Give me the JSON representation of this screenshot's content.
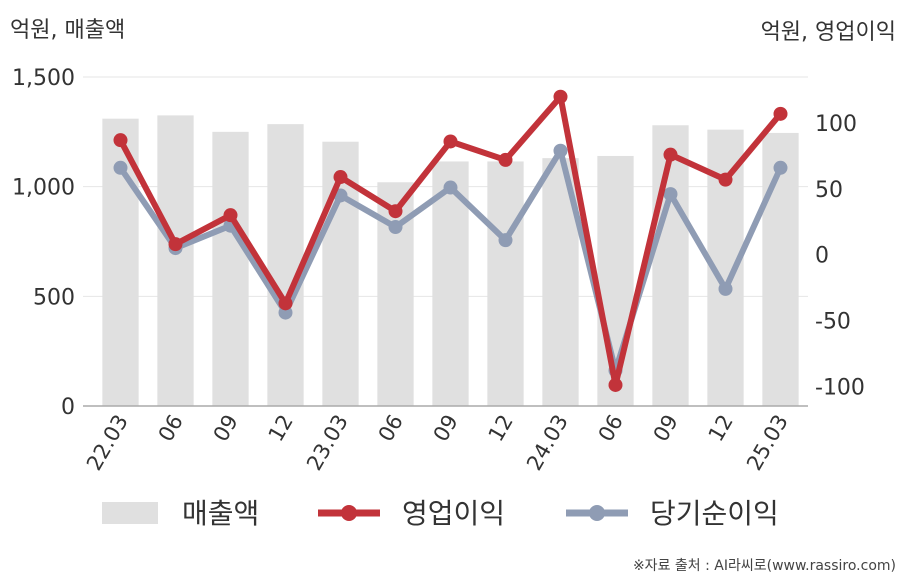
{
  "header": {
    "left_unit": "억원, 매출액",
    "right_unit": "억원, 영업이익"
  },
  "footer": {
    "source": "※자료 출처 : AI라씨로(www.rassiro.com)"
  },
  "chart_data": {
    "type": "bar",
    "categories": [
      "22.03",
      "06",
      "09",
      "12",
      "23.03",
      "06",
      "09",
      "12",
      "24.03",
      "06",
      "09",
      "12",
      "25.03"
    ],
    "left_axis": {
      "ticks": [
        0,
        500,
        1000,
        1500
      ],
      "tick_labels": [
        "0",
        "500",
        "1,000",
        "1,500"
      ],
      "ylim": [
        0,
        1500
      ]
    },
    "right_axis": {
      "ticks": [
        -100,
        -50,
        0,
        50,
        100
      ],
      "tick_labels": [
        "-100",
        "-50",
        "0",
        "50",
        "100"
      ],
      "ylim": [
        -115,
        135
      ]
    },
    "series": [
      {
        "name": "매출액",
        "type": "bar",
        "axis": "left",
        "color": "#e0e0e0",
        "values": [
          1310,
          1325,
          1250,
          1285,
          1205,
          1020,
          1115,
          1115,
          1130,
          1140,
          1280,
          1260,
          1245
        ]
      },
      {
        "name": "영업이익",
        "type": "line",
        "axis": "right",
        "color": "#c2333a",
        "values": [
          87,
          8,
          30,
          -37,
          59,
          33,
          86,
          72,
          120,
          -99,
          76,
          57,
          107
        ]
      },
      {
        "name": "당기순이익",
        "type": "line",
        "axis": "right",
        "color": "#8f9cb4",
        "values": [
          66,
          5,
          22,
          -44,
          45,
          21,
          51,
          11,
          79,
          -88,
          46,
          -26,
          66
        ]
      }
    ],
    "grid": true,
    "legend_position": "bottom"
  }
}
